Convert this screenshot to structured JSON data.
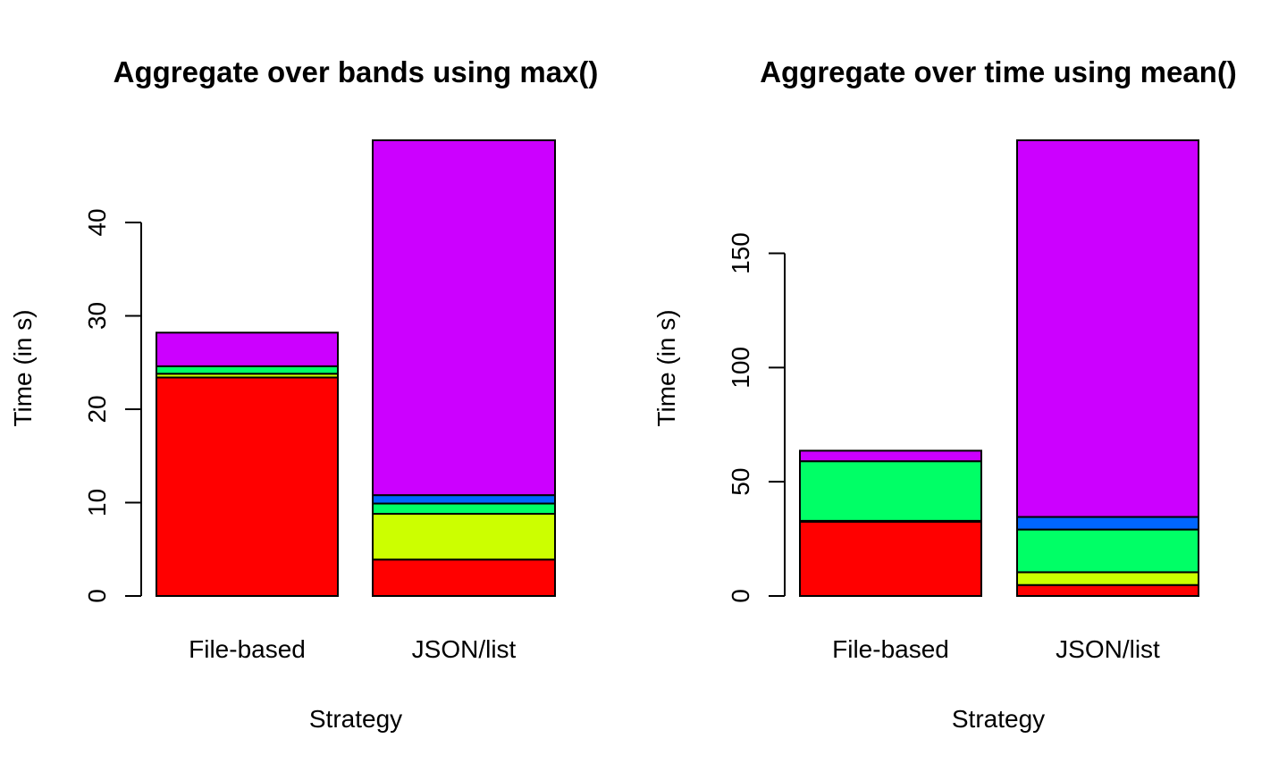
{
  "chart_data": [
    {
      "type": "bar",
      "stacked": true,
      "title": "Aggregate over bands using max()",
      "xlabel": "Strategy",
      "ylabel": "Time (in s)",
      "categories": [
        "File-based",
        "JSON/list"
      ],
      "ylim": [
        0,
        48.8
      ],
      "yticks": [
        0,
        10,
        20,
        30,
        40
      ],
      "grid": false,
      "series": [
        {
          "color": "#FF0000",
          "values": [
            23.4,
            3.9
          ]
        },
        {
          "color": "#CCFF00",
          "values": [
            0.4,
            4.9
          ]
        },
        {
          "color": "#00FF66",
          "values": [
            0.8,
            1.1
          ]
        },
        {
          "color": "#0066FF",
          "values": [
            0.0,
            0.9
          ]
        },
        {
          "color": "#CC00FF",
          "values": [
            3.6,
            38.0
          ]
        }
      ]
    },
    {
      "type": "bar",
      "stacked": true,
      "title": "Aggregate over time using mean()",
      "xlabel": "Strategy",
      "ylabel": "Time (in s)",
      "categories": [
        "File-based",
        "JSON/list"
      ],
      "ylim": [
        0,
        199.5
      ],
      "yticks": [
        0,
        50,
        100,
        150
      ],
      "grid": false,
      "series": [
        {
          "color": "#FF0000",
          "values": [
            32.5,
            4.8
          ]
        },
        {
          "color": "#CCFF00",
          "values": [
            0.4,
            5.6
          ]
        },
        {
          "color": "#00FF66",
          "values": [
            26.1,
            18.7
          ]
        },
        {
          "color": "#0066FF",
          "values": [
            0.0,
            5.5
          ]
        },
        {
          "color": "#CC00FF",
          "values": [
            4.6,
            164.9
          ]
        }
      ]
    }
  ]
}
